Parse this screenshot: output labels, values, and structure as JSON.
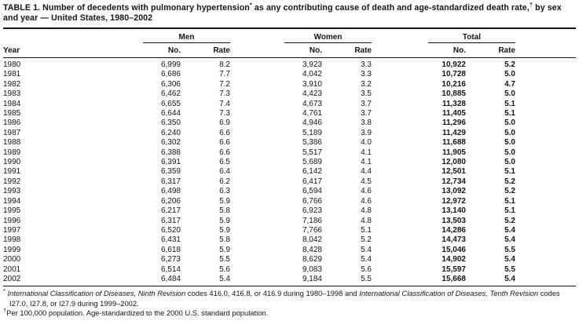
{
  "table": {
    "title": {
      "part1": "TABLE 1. Number of decedents with pulmonary hypertension",
      "sup1": "*",
      "part2": " as any contributing cause of death and age-standardized death rate,",
      "sup2": "†",
      "part3": " by sex and year — United States, 1980–2002"
    },
    "groups": {
      "men": "Men",
      "women": "Women",
      "total": "Total"
    },
    "columns": {
      "year": "Year",
      "no": "No.",
      "rate": "Rate"
    },
    "rows": [
      [
        "1980",
        "6,999",
        "8.2",
        "3,923",
        "3.3",
        "10,922",
        "5.2"
      ],
      [
        "1981",
        "6,686",
        "7.7",
        "4,042",
        "3.3",
        "10,728",
        "5.0"
      ],
      [
        "1982",
        "6,306",
        "7.2",
        "3,910",
        "3.2",
        "10,216",
        "4.7"
      ],
      [
        "1983",
        "6,462",
        "7.3",
        "4,423",
        "3.5",
        "10,885",
        "5.0"
      ],
      [
        "1984",
        "6,655",
        "7.4",
        "4,673",
        "3.7",
        "11,328",
        "5.1"
      ],
      [
        "1985",
        "6,644",
        "7.3",
        "4,761",
        "3.7",
        "11,405",
        "5.1"
      ],
      [
        "1986",
        "6,350",
        "6.9",
        "4,946",
        "3.8",
        "11,296",
        "5.0"
      ],
      [
        "1987",
        "6,240",
        "6.6",
        "5,189",
        "3.9",
        "11,429",
        "5.0"
      ],
      [
        "1988",
        "6,302",
        "6.6",
        "5,386",
        "4.0",
        "11,688",
        "5.0"
      ],
      [
        "1989",
        "6,388",
        "6.6",
        "5,517",
        "4.1",
        "11,905",
        "5.0"
      ],
      [
        "1990",
        "6,391",
        "6.5",
        "5,689",
        "4.1",
        "12,080",
        "5.0"
      ],
      [
        "1991",
        "6,359",
        "6.4",
        "6,142",
        "4.4",
        "12,501",
        "5.1"
      ],
      [
        "1992",
        "6,317",
        "6.2",
        "6,417",
        "4.5",
        "12,734",
        "5.2"
      ],
      [
        "1993",
        "6,498",
        "6.3",
        "6,594",
        "4.6",
        "13,092",
        "5.2"
      ],
      [
        "1994",
        "6,206",
        "5.9",
        "6,766",
        "4.6",
        "12,972",
        "5.1"
      ],
      [
        "1995",
        "6,217",
        "5.8",
        "6,923",
        "4.8",
        "13,140",
        "5.1"
      ],
      [
        "1996",
        "6,317",
        "5.9",
        "7,186",
        "4.8",
        "13,503",
        "5.2"
      ],
      [
        "1997",
        "6,520",
        "5.9",
        "7,766",
        "5.1",
        "14,286",
        "5.4"
      ],
      [
        "1998",
        "6,431",
        "5.8",
        "8,042",
        "5.2",
        "14,473",
        "5.4"
      ],
      [
        "1999",
        "6,618",
        "5.9",
        "8,428",
        "5.4",
        "15,046",
        "5.5"
      ],
      [
        "2000",
        "6,273",
        "5.5",
        "8,629",
        "5.4",
        "14,902",
        "5.4"
      ],
      [
        "2001",
        "6,514",
        "5.6",
        "9,083",
        "5.6",
        "15,597",
        "5.5"
      ],
      [
        "2002",
        "6,484",
        "5.4",
        "9,184",
        "5.5",
        "15,668",
        "5.4"
      ]
    ],
    "footnotes": {
      "f1": {
        "marker": "*",
        "italic1": "International Classification of Diseases, Ninth Revision",
        "text1": " codes 416.0, 416.8, or 416.9 during 1980–1998 and ",
        "italic2": "International Classification of Diseases, Tenth Revision",
        "text2": " codes I27.0, I27.8, or I27.9 during 1999–2002."
      },
      "f2": {
        "marker": "†",
        "text": "Per 100,000 population. Age-standardized to the 2000 U.S. standard population."
      }
    }
  }
}
